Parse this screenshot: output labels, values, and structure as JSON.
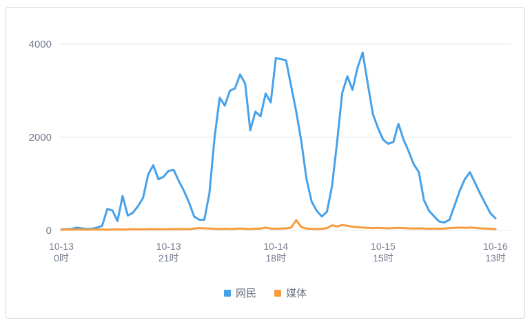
{
  "chart_data": {
    "type": "line",
    "x_count": 86,
    "x_unit": "hour",
    "x_tick_positions": [
      0,
      21,
      42,
      63,
      85
    ],
    "x_tick_labels": [
      [
        "10-13",
        "0时"
      ],
      [
        "10-13",
        "21时"
      ],
      [
        "10-14",
        "18时"
      ],
      [
        "10-15",
        "15时"
      ],
      [
        "10-16",
        "13时"
      ]
    ],
    "y_ticks": [
      0,
      2000,
      4000
    ],
    "ylim": [
      0,
      4000
    ],
    "grid": true,
    "legend_position": "bottom",
    "series": [
      {
        "name": "网民",
        "color": "#47a1e9",
        "values": [
          20,
          25,
          30,
          60,
          45,
          30,
          35,
          60,
          100,
          460,
          430,
          200,
          740,
          320,
          380,
          520,
          700,
          1200,
          1400,
          1100,
          1150,
          1280,
          1300,
          1060,
          850,
          600,
          300,
          230,
          230,
          800,
          2000,
          2850,
          2680,
          3000,
          3050,
          3350,
          3150,
          2150,
          2550,
          2450,
          2940,
          2750,
          3700,
          3680,
          3650,
          3100,
          2550,
          1900,
          1100,
          620,
          420,
          300,
          400,
          950,
          1900,
          2950,
          3310,
          3020,
          3500,
          3820,
          3150,
          2500,
          2200,
          1950,
          1860,
          1900,
          2290,
          1950,
          1700,
          1420,
          1250,
          650,
          420,
          300,
          190,
          170,
          230,
          540,
          850,
          1100,
          1250,
          1020,
          790,
          580,
          370,
          260
        ]
      },
      {
        "name": "媒体",
        "color": "#f79b3d",
        "values": [
          15,
          18,
          15,
          20,
          18,
          15,
          18,
          20,
          18,
          15,
          20,
          22,
          18,
          20,
          25,
          22,
          20,
          25,
          28,
          25,
          22,
          25,
          28,
          30,
          28,
          25,
          40,
          50,
          45,
          40,
          35,
          30,
          35,
          30,
          35,
          40,
          35,
          30,
          35,
          40,
          60,
          40,
          35,
          40,
          45,
          60,
          220,
          70,
          40,
          35,
          30,
          35,
          50,
          110,
          85,
          115,
          100,
          80,
          70,
          60,
          55,
          50,
          55,
          50,
          45,
          50,
          55,
          50,
          45,
          40,
          45,
          40,
          35,
          40,
          35,
          40,
          50,
          55,
          60,
          55,
          60,
          55,
          45,
          40,
          35,
          30
        ]
      }
    ]
  },
  "colors": {
    "background": "#ffffff",
    "card_border": "#d7d9de",
    "gridline": "#e4e8f1",
    "axis_text": "#767b8e",
    "legend_text": "#6b7080"
  }
}
